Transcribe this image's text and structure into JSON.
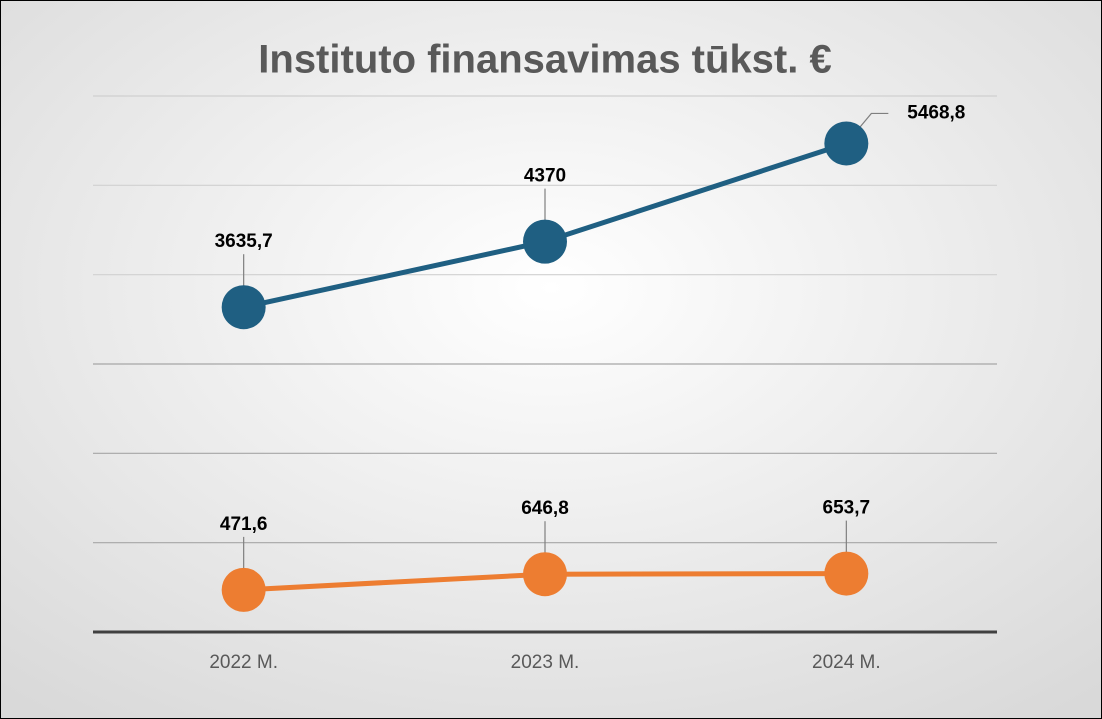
{
  "chart_data": {
    "type": "line",
    "title": "Instituto finansavimas tūkst. €",
    "categories": [
      "2022 M.",
      "2023 M.",
      "2024 M."
    ],
    "series": [
      {
        "color": "#1f5f82",
        "values": [
          3635.7,
          4370,
          5468.8
        ],
        "value_labels": [
          "3635,7",
          "4370",
          "5468,8"
        ]
      },
      {
        "color": "#ed7d31",
        "values": [
          471.6,
          646.8,
          653.7
        ],
        "value_labels": [
          "471,6",
          "646,8",
          "653,7"
        ]
      }
    ],
    "ylim": [
      0,
      6000
    ],
    "yticks": [
      0,
      1000,
      2000,
      3000,
      4000,
      5000,
      6000
    ],
    "grid": true
  }
}
